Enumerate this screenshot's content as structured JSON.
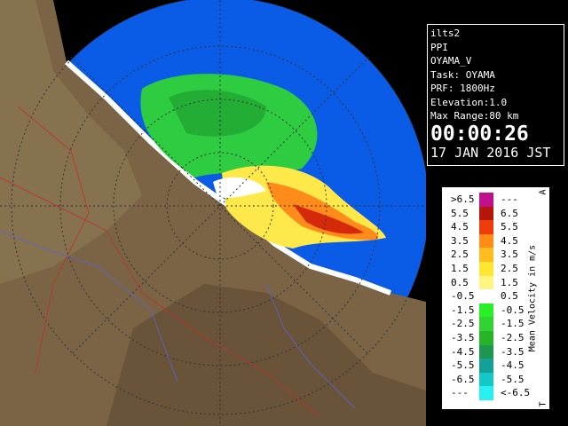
{
  "info": {
    "radar": "ilts2",
    "mode": "PPI",
    "product": "OYAMA_V",
    "task": "Task: OYAMA",
    "prf": "PRF: 1800Hz",
    "elevation": "Elevation:1.0",
    "max_range": "Max Range:80 km",
    "time": "00:00:26",
    "date": "17 JAN 2016 JST"
  },
  "legend": {
    "title": "Mean Velocity in m/s",
    "top_mark": "A",
    "bottom_mark": "T",
    "rows": [
      {
        "low": ">6.5",
        "high": "---",
        "color": "#c0108c"
      },
      {
        "low": "5.5",
        "high": "6.5",
        "color": "#b4160a"
      },
      {
        "low": "4.5",
        "high": "5.5",
        "color": "#f03c0a"
      },
      {
        "low": "3.5",
        "high": "4.5",
        "color": "#ff8c14"
      },
      {
        "low": "2.5",
        "high": "3.5",
        "color": "#ffbe1e"
      },
      {
        "low": "1.5",
        "high": "2.5",
        "color": "#ffe632"
      },
      {
        "low": "0.5",
        "high": "1.5",
        "color": "#fff582"
      },
      {
        "low": "-0.5",
        "high": "0.5",
        "color": "#ffffff"
      },
      {
        "low": "-1.5",
        "high": "-0.5",
        "color": "#28f028"
      },
      {
        "low": "-2.5",
        "high": "-1.5",
        "color": "#32d232"
      },
      {
        "low": "-3.5",
        "high": "-2.5",
        "color": "#28b428"
      },
      {
        "low": "-4.5",
        "high": "-3.5",
        "color": "#1e9650"
      },
      {
        "low": "-5.5",
        "high": "-4.5",
        "color": "#14a096"
      },
      {
        "low": "-6.5",
        "high": "-5.5",
        "color": "#14c8c8"
      },
      {
        "low": "---",
        "high": "<-6.5",
        "color": "#28f0f0"
      }
    ]
  }
}
